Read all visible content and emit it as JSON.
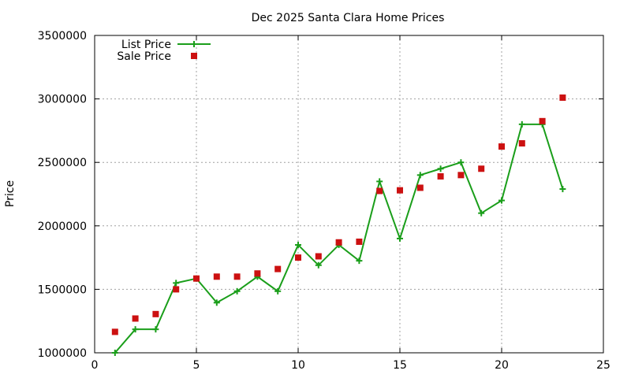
{
  "chart_data": {
    "type": "line",
    "title": "Dec 2025 Santa Clara Home Prices",
    "xlabel": "",
    "ylabel": "Price",
    "xlim": [
      0,
      25
    ],
    "ylim": [
      1000000,
      3500000
    ],
    "xticks": [
      0,
      5,
      10,
      15,
      20,
      25
    ],
    "yticks": [
      1000000,
      1500000,
      2000000,
      2500000,
      3000000,
      3500000
    ],
    "grid": true,
    "legend_position": "top-left",
    "series": [
      {
        "name": "List Price",
        "style": "lines+crosses",
        "color": "#1a9e1a",
        "x": [
          1,
          2,
          3,
          4,
          5,
          6,
          7,
          8,
          9,
          10,
          11,
          12,
          13,
          14,
          15,
          16,
          17,
          18,
          19,
          20,
          21,
          22,
          23
        ],
        "values": [
          1000000,
          1185000,
          1185000,
          1550000,
          1585000,
          1395000,
          1485000,
          1600000,
          1485000,
          1850000,
          1690000,
          1850000,
          1725000,
          2350000,
          1900000,
          2400000,
          2450000,
          2500000,
          2100000,
          2200000,
          2800000,
          2800000,
          2290000
        ]
      },
      {
        "name": "Sale Price",
        "style": "points",
        "color": "#cc1111",
        "x": [
          1,
          2,
          3,
          4,
          5,
          6,
          7,
          8,
          9,
          10,
          11,
          12,
          13,
          14,
          15,
          16,
          17,
          18,
          19,
          20,
          21,
          22,
          23
        ],
        "values": [
          1165000,
          1270000,
          1305000,
          1500000,
          1585000,
          1600000,
          1600000,
          1625000,
          1660000,
          1750000,
          1760000,
          1870000,
          1875000,
          2275000,
          2280000,
          2300000,
          2390000,
          2400000,
          2450000,
          2625000,
          2650000,
          2825000,
          3010000
        ]
      }
    ]
  }
}
